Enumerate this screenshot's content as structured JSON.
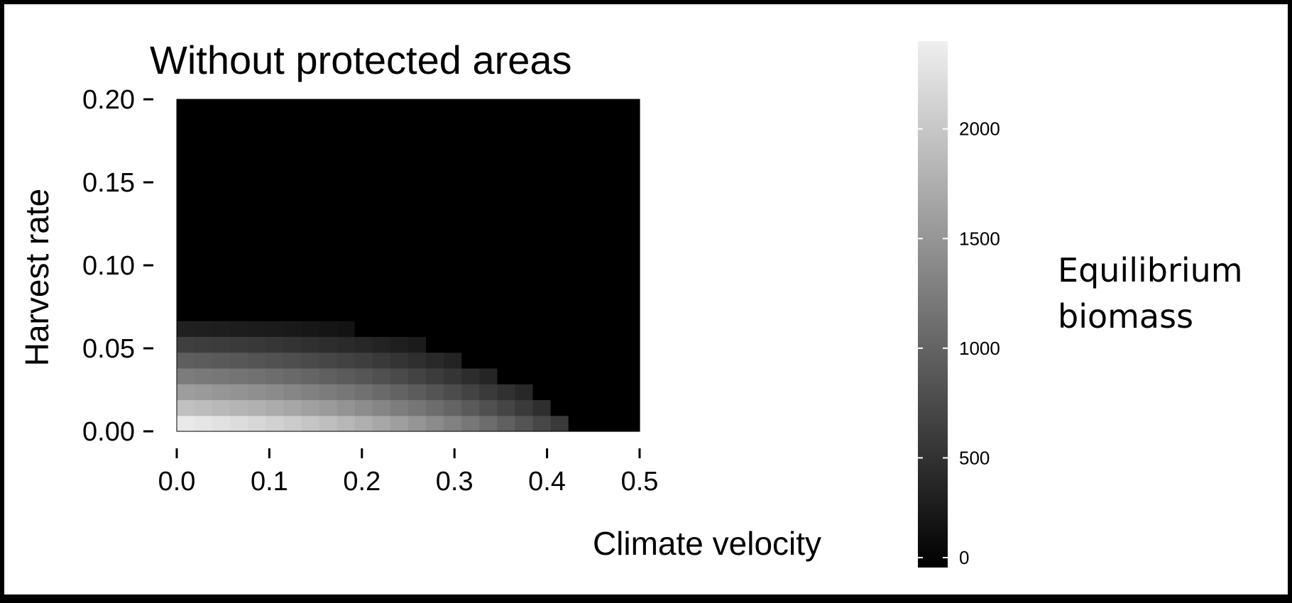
{
  "chart_data": {
    "type": "heatmap",
    "title": "Without protected areas",
    "xlabel": "Climate velocity",
    "ylabel": "Harvest rate",
    "xlim": [
      0,
      0.5
    ],
    "ylim": [
      0,
      0.2
    ],
    "x_ticks": [
      "0.0",
      "0.1",
      "0.2",
      "0.3",
      "0.4",
      "0.5"
    ],
    "x_tick_values": [
      0,
      0.1,
      0.2,
      0.3,
      0.4,
      0.5
    ],
    "y_ticks": [
      "0.20",
      "0.15",
      "0.10",
      "0.05",
      "0.00"
    ],
    "y_tick_values": [
      0.2,
      0.15,
      0.1,
      0.05,
      0
    ],
    "x_step": 0.02,
    "y_step": 0.01,
    "x_start": 0,
    "y_start": 0,
    "grid": false,
    "colorscale": {
      "low": "#000000",
      "high": "#efefef"
    },
    "colorbar": {
      "title_line1": "Equilibrium",
      "title_line2": "biomass",
      "min": 0,
      "max": 2400,
      "ticks": [
        "0",
        "500",
        "1000",
        "1500",
        "2000"
      ],
      "tick_values": [
        0,
        500,
        1000,
        1500,
        2000
      ]
    },
    "z": [
      [
        2340,
        2300,
        2260,
        2210,
        2160,
        2100,
        2040,
        1980,
        1910,
        1840,
        1760,
        1680,
        1590,
        1500,
        1400,
        1300,
        1190,
        1080,
        960,
        840,
        710,
        580,
        0,
        0,
        0,
        0
      ],
      [
        1930,
        1890,
        1850,
        1810,
        1770,
        1720,
        1670,
        1610,
        1550,
        1480,
        1410,
        1340,
        1260,
        1180,
        1090,
        1000,
        900,
        800,
        690,
        580,
        470,
        0,
        0,
        0,
        0,
        0
      ],
      [
        1580,
        1550,
        1510,
        1480,
        1440,
        1400,
        1350,
        1300,
        1250,
        1190,
        1130,
        1060,
        990,
        920,
        840,
        760,
        670,
        580,
        490,
        400,
        0,
        0,
        0,
        0,
        0,
        0
      ],
      [
        1250,
        1220,
        1190,
        1160,
        1130,
        1090,
        1050,
        1010,
        960,
        910,
        860,
        800,
        740,
        670,
        600,
        530,
        450,
        370,
        0,
        0,
        0,
        0,
        0,
        0,
        0,
        0
      ],
      [
        940,
        920,
        890,
        870,
        840,
        810,
        780,
        740,
        700,
        660,
        620,
        570,
        520,
        470,
        410,
        350,
        0,
        0,
        0,
        0,
        0,
        0,
        0,
        0,
        0,
        0
      ],
      [
        630,
        610,
        600,
        580,
        560,
        540,
        510,
        480,
        450,
        420,
        390,
        350,
        310,
        270,
        0,
        0,
        0,
        0,
        0,
        0,
        0,
        0,
        0,
        0,
        0,
        0
      ],
      [
        320,
        310,
        300,
        290,
        280,
        270,
        250,
        230,
        210,
        190,
        0,
        0,
        0,
        0,
        0,
        0,
        0,
        0,
        0,
        0,
        0,
        0,
        0,
        0,
        0,
        0
      ],
      [
        0,
        0,
        0,
        0,
        0,
        0,
        0,
        0,
        0,
        0,
        0,
        0,
        0,
        0,
        0,
        0,
        0,
        0,
        0,
        0,
        0,
        0,
        0,
        0,
        0,
        0
      ],
      [
        0,
        0,
        0,
        0,
        0,
        0,
        0,
        0,
        0,
        0,
        0,
        0,
        0,
        0,
        0,
        0,
        0,
        0,
        0,
        0,
        0,
        0,
        0,
        0,
        0,
        0
      ],
      [
        0,
        0,
        0,
        0,
        0,
        0,
        0,
        0,
        0,
        0,
        0,
        0,
        0,
        0,
        0,
        0,
        0,
        0,
        0,
        0,
        0,
        0,
        0,
        0,
        0,
        0
      ],
      [
        0,
        0,
        0,
        0,
        0,
        0,
        0,
        0,
        0,
        0,
        0,
        0,
        0,
        0,
        0,
        0,
        0,
        0,
        0,
        0,
        0,
        0,
        0,
        0,
        0,
        0
      ],
      [
        0,
        0,
        0,
        0,
        0,
        0,
        0,
        0,
        0,
        0,
        0,
        0,
        0,
        0,
        0,
        0,
        0,
        0,
        0,
        0,
        0,
        0,
        0,
        0,
        0,
        0
      ],
      [
        0,
        0,
        0,
        0,
        0,
        0,
        0,
        0,
        0,
        0,
        0,
        0,
        0,
        0,
        0,
        0,
        0,
        0,
        0,
        0,
        0,
        0,
        0,
        0,
        0,
        0
      ],
      [
        0,
        0,
        0,
        0,
        0,
        0,
        0,
        0,
        0,
        0,
        0,
        0,
        0,
        0,
        0,
        0,
        0,
        0,
        0,
        0,
        0,
        0,
        0,
        0,
        0,
        0
      ],
      [
        0,
        0,
        0,
        0,
        0,
        0,
        0,
        0,
        0,
        0,
        0,
        0,
        0,
        0,
        0,
        0,
        0,
        0,
        0,
        0,
        0,
        0,
        0,
        0,
        0,
        0
      ],
      [
        0,
        0,
        0,
        0,
        0,
        0,
        0,
        0,
        0,
        0,
        0,
        0,
        0,
        0,
        0,
        0,
        0,
        0,
        0,
        0,
        0,
        0,
        0,
        0,
        0,
        0
      ],
      [
        0,
        0,
        0,
        0,
        0,
        0,
        0,
        0,
        0,
        0,
        0,
        0,
        0,
        0,
        0,
        0,
        0,
        0,
        0,
        0,
        0,
        0,
        0,
        0,
        0,
        0
      ],
      [
        0,
        0,
        0,
        0,
        0,
        0,
        0,
        0,
        0,
        0,
        0,
        0,
        0,
        0,
        0,
        0,
        0,
        0,
        0,
        0,
        0,
        0,
        0,
        0,
        0,
        0
      ],
      [
        0,
        0,
        0,
        0,
        0,
        0,
        0,
        0,
        0,
        0,
        0,
        0,
        0,
        0,
        0,
        0,
        0,
        0,
        0,
        0,
        0,
        0,
        0,
        0,
        0,
        0
      ],
      [
        0,
        0,
        0,
        0,
        0,
        0,
        0,
        0,
        0,
        0,
        0,
        0,
        0,
        0,
        0,
        0,
        0,
        0,
        0,
        0,
        0,
        0,
        0,
        0,
        0,
        0
      ],
      [
        0,
        0,
        0,
        0,
        0,
        0,
        0,
        0,
        0,
        0,
        0,
        0,
        0,
        0,
        0,
        0,
        0,
        0,
        0,
        0,
        0,
        0,
        0,
        0,
        0,
        0
      ]
    ]
  }
}
